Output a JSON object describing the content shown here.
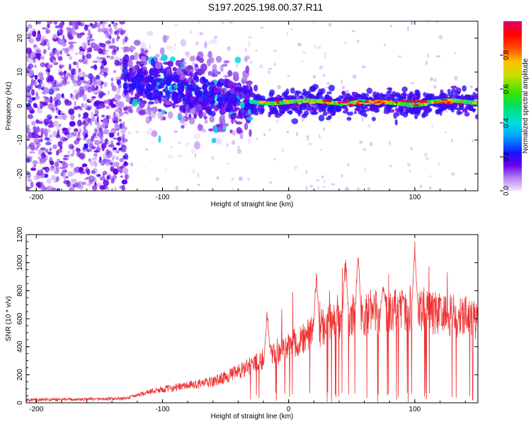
{
  "figure": {
    "title": "S197.2025.198.00.37.R11"
  },
  "chart_data": [
    {
      "type": "heatmap",
      "xlabel": "Height of straight line (km)",
      "ylabel": "Frequency (Hz)",
      "xlim": [
        -208,
        150
      ],
      "ylim": [
        -25,
        25
      ],
      "x_ticks": [
        "-200",
        "-100",
        "0",
        "100"
      ],
      "x_tick_values": [
        -200,
        -100,
        0,
        100
      ],
      "y_ticks": [
        "20",
        "10",
        "0",
        "-10",
        "-20"
      ],
      "y_tick_values": [
        20,
        10,
        0,
        -10,
        -20
      ],
      "colorbar": {
        "label": "Normalized spectral amplitude",
        "ticks": [
          "0.0",
          "0.2",
          "0.4",
          "0.6",
          "0.8"
        ],
        "tick_values": [
          0.0,
          0.2,
          0.4,
          0.6,
          0.8
        ],
        "range": [
          0,
          1
        ]
      },
      "regions": [
        {
          "description_range_km": [
            -208,
            -130
          ],
          "freq_spread_hz": [
            -25,
            25
          ],
          "amplitude": "low (noise)"
        },
        {
          "description_range_km": [
            -130,
            -30
          ],
          "freq_center_hz_start": 8,
          "freq_center_hz_end": 0,
          "amplitude": "low-medium"
        },
        {
          "description_range_km": [
            -30,
            150
          ],
          "freq_center_hz": 1,
          "amplitude": "high (0.6-1.0)"
        }
      ],
      "grid": false
    },
    {
      "type": "line",
      "xlabel": "Height of straight line (km)",
      "ylabel": "SNR (10 * v/v)",
      "xlim": [
        -208,
        150
      ],
      "ylim": [
        0,
        1200
      ],
      "x_ticks": [
        "-200",
        "-100",
        "0",
        "100"
      ],
      "x_tick_values": [
        -200,
        -100,
        0,
        100
      ],
      "y_ticks": [
        "0",
        "200",
        "400",
        "600",
        "800",
        "1000",
        "1200"
      ],
      "y_tick_values": [
        0,
        200,
        400,
        600,
        800,
        1000,
        1200
      ],
      "series": [
        {
          "color": "#ee3333",
          "envelope": [
            {
              "x": -208,
              "y": 20
            },
            {
              "x": -160,
              "y": 25
            },
            {
              "x": -130,
              "y": 30
            },
            {
              "x": -110,
              "y": 80
            },
            {
              "x": -90,
              "y": 110
            },
            {
              "x": -60,
              "y": 150
            },
            {
              "x": -40,
              "y": 220
            },
            {
              "x": -20,
              "y": 320
            },
            {
              "x": -5,
              "y": 380
            },
            {
              "x": 10,
              "y": 450
            },
            {
              "x": 20,
              "y": 500
            },
            {
              "x": 30,
              "y": 560
            },
            {
              "x": 50,
              "y": 620
            },
            {
              "x": 70,
              "y": 650
            },
            {
              "x": 90,
              "y": 660
            },
            {
              "x": 100,
              "y": 680
            },
            {
              "x": 120,
              "y": 630
            },
            {
              "x": 150,
              "y": 600
            }
          ],
          "peaks": [
            {
              "x": -17,
              "y": 700
            },
            {
              "x": 22,
              "y": 1000
            },
            {
              "x": 45,
              "y": 1120
            },
            {
              "x": 55,
              "y": 1140
            },
            {
              "x": 75,
              "y": 850
            },
            {
              "x": 100,
              "y": 1200
            }
          ]
        }
      ],
      "grid": false
    }
  ]
}
